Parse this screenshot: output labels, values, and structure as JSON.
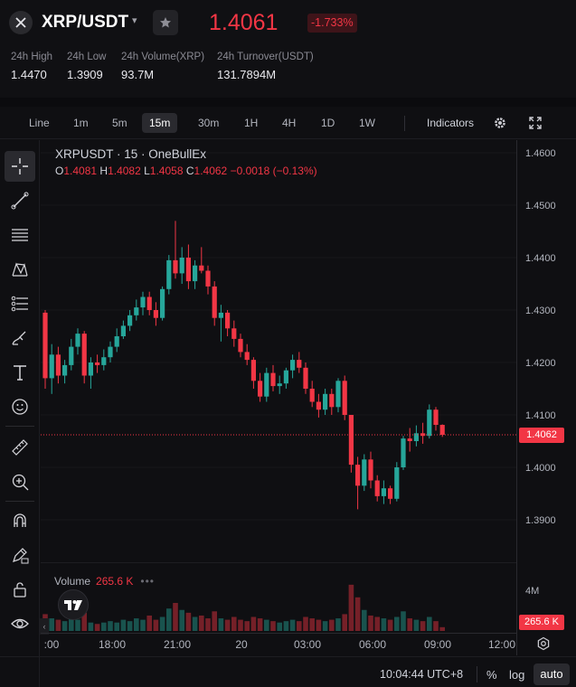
{
  "header": {
    "pair": "XRP/USDT",
    "caret": "▾",
    "last_price": "1.4061",
    "change_pct": "-1.733%",
    "stats": [
      {
        "label": "24h High",
        "value": "1.4470"
      },
      {
        "label": "24h Low",
        "value": "1.3909"
      },
      {
        "label": "24h Volume(XRP)",
        "value": "93.7M"
      },
      {
        "label": "24h Turnover(USDT)",
        "value": "131.7894M"
      }
    ]
  },
  "toolbar": {
    "timeframes": [
      "Line",
      "1m",
      "5m",
      "15m",
      "30m",
      "1H",
      "4H",
      "1D",
      "1W"
    ],
    "active_timeframe": "15m",
    "indicators_label": "Indicators"
  },
  "legend": {
    "title": "XRPUSDT · 15 · OneBullEx",
    "o_label": "O",
    "o": "1.4081",
    "h_label": "H",
    "h": "1.4082",
    "l_label": "L",
    "l": "1.4058",
    "c_label": "C",
    "c": "1.4062",
    "change": "−0.0018 (−0.13%)"
  },
  "price_axis": {
    "labels": [
      "1.4600",
      "1.4500",
      "1.4400",
      "1.4300",
      "1.4200",
      "1.4100",
      "1.4000",
      "1.3900"
    ],
    "current_tag": "1.4062",
    "volume_labels": [
      "4M"
    ],
    "volume_tag": "265.6 K"
  },
  "volume": {
    "label": "Volume",
    "value": "265.6 K",
    "dots": "•••"
  },
  "time_axis": {
    "labels": [
      ":00",
      "18:00",
      "21:00",
      "20",
      "03:00",
      "06:00",
      "09:00",
      "12:00"
    ]
  },
  "bottom_bar": {
    "clock": "10:04:44 UTC+8",
    "percent": "%",
    "log": "log",
    "auto": "auto"
  },
  "colors": {
    "up": "#26a69a",
    "down": "#f23645",
    "background": "#0f0f12",
    "accent_price": "#f23645"
  },
  "icons": {
    "pair": "close-x-icon",
    "favorite": "star-icon",
    "settings": "gear-icon",
    "fullscreen": "expand-icon",
    "tools": [
      "crosshair-icon",
      "trend-line-icon",
      "horizontal-lines-icon",
      "pattern-icon",
      "fib-icon",
      "brush-icon",
      "text-icon",
      "emoji-icon",
      "ruler-icon",
      "zoom-in-icon",
      "magnet-icon",
      "lock-pencil-icon",
      "lock-icon",
      "eye-icon"
    ]
  },
  "chart_data": {
    "type": "candlestick",
    "symbol": "XRPUSDT",
    "interval": "15",
    "ylim": [
      1.3855,
      1.462
    ],
    "price_ticks": [
      1.46,
      1.45,
      1.44,
      1.43,
      1.42,
      1.41,
      1.4,
      1.39
    ],
    "last_price": 1.4062,
    "candles": [
      [
        1.4295,
        1.43,
        1.415,
        1.417
      ],
      [
        1.417,
        1.4235,
        1.414,
        1.4215
      ],
      [
        1.4215,
        1.423,
        1.416,
        1.4175
      ],
      [
        1.4175,
        1.4205,
        1.416,
        1.4195
      ],
      [
        1.4195,
        1.4245,
        1.4185,
        1.423
      ],
      [
        1.423,
        1.4265,
        1.4215,
        1.4255
      ],
      [
        1.4255,
        1.426,
        1.416,
        1.4175
      ],
      [
        1.4175,
        1.421,
        1.415,
        1.42
      ],
      [
        1.42,
        1.4215,
        1.418,
        1.4195
      ],
      [
        1.4195,
        1.4225,
        1.4185,
        1.421
      ],
      [
        1.421,
        1.424,
        1.42,
        1.423
      ],
      [
        1.423,
        1.4265,
        1.422,
        1.425
      ],
      [
        1.425,
        1.428,
        1.4245,
        1.427
      ],
      [
        1.427,
        1.43,
        1.426,
        1.429
      ],
      [
        1.429,
        1.432,
        1.428,
        1.4305
      ],
      [
        1.4305,
        1.4335,
        1.429,
        1.4325
      ],
      [
        1.4325,
        1.4335,
        1.429,
        1.43
      ],
      [
        1.43,
        1.4315,
        1.427,
        1.4285
      ],
      [
        1.4285,
        1.4345,
        1.428,
        1.434
      ],
      [
        1.434,
        1.4405,
        1.433,
        1.4395
      ],
      [
        1.4395,
        1.447,
        1.436,
        1.437
      ],
      [
        1.437,
        1.442,
        1.435,
        1.44
      ],
      [
        1.44,
        1.4425,
        1.434,
        1.4355
      ],
      [
        1.4355,
        1.4395,
        1.434,
        1.4385
      ],
      [
        1.4385,
        1.442,
        1.437,
        1.4375
      ],
      [
        1.4375,
        1.4385,
        1.433,
        1.4345
      ],
      [
        1.4345,
        1.4355,
        1.427,
        1.4285
      ],
      [
        1.4285,
        1.431,
        1.424,
        1.4295
      ],
      [
        1.4295,
        1.43,
        1.425,
        1.4265
      ],
      [
        1.4265,
        1.428,
        1.423,
        1.4245
      ],
      [
        1.4245,
        1.4255,
        1.421,
        1.422
      ],
      [
        1.422,
        1.4235,
        1.4195,
        1.4205
      ],
      [
        1.4205,
        1.421,
        1.415,
        1.4165
      ],
      [
        1.4165,
        1.418,
        1.4125,
        1.4135
      ],
      [
        1.4135,
        1.419,
        1.4125,
        1.418
      ],
      [
        1.418,
        1.4195,
        1.4145,
        1.4155
      ],
      [
        1.4155,
        1.4175,
        1.414,
        1.416
      ],
      [
        1.416,
        1.419,
        1.415,
        1.4185
      ],
      [
        1.4185,
        1.4215,
        1.417,
        1.4205
      ],
      [
        1.4205,
        1.422,
        1.418,
        1.419
      ],
      [
        1.419,
        1.42,
        1.414,
        1.415
      ],
      [
        1.415,
        1.4165,
        1.4115,
        1.4125
      ],
      [
        1.4125,
        1.414,
        1.4095,
        1.411
      ],
      [
        1.411,
        1.415,
        1.41,
        1.414
      ],
      [
        1.414,
        1.415,
        1.41,
        1.4115
      ],
      [
        1.4115,
        1.417,
        1.4105,
        1.4165
      ],
      [
        1.4165,
        1.4175,
        1.409,
        1.41
      ],
      [
        1.41,
        1.41,
        1.399,
        1.4005
      ],
      [
        1.4005,
        1.402,
        1.392,
        1.3965
      ],
      [
        1.3965,
        1.4025,
        1.3955,
        1.4015
      ],
      [
        1.4015,
        1.403,
        1.396,
        1.3975
      ],
      [
        1.3975,
        1.3985,
        1.3935,
        1.3945
      ],
      [
        1.3945,
        1.3975,
        1.393,
        1.396
      ],
      [
        1.396,
        1.3965,
        1.393,
        1.394
      ],
      [
        1.394,
        1.401,
        1.3935,
        1.4
      ],
      [
        1.4,
        1.406,
        1.3995,
        1.4055
      ],
      [
        1.4055,
        1.4075,
        1.403,
        1.405
      ],
      [
        1.405,
        1.408,
        1.404,
        1.4065
      ],
      [
        1.4065,
        1.4085,
        1.4045,
        1.406
      ],
      [
        1.406,
        1.412,
        1.4055,
        1.411
      ],
      [
        1.411,
        1.4115,
        1.407,
        1.4081
      ],
      [
        1.4081,
        1.4082,
        1.4058,
        1.4062
      ]
    ],
    "volumes": [
      1.2,
      0.9,
      0.8,
      0.7,
      0.9,
      0.8,
      1.3,
      0.6,
      0.5,
      0.6,
      0.7,
      0.6,
      0.8,
      0.7,
      0.9,
      0.8,
      1.1,
      0.8,
      1.0,
      1.6,
      2.0,
      1.5,
      1.3,
      1.0,
      1.1,
      0.9,
      1.4,
      0.9,
      0.8,
      1.0,
      0.8,
      0.7,
      1.0,
      0.9,
      0.8,
      0.7,
      0.6,
      0.7,
      0.8,
      0.7,
      1.0,
      0.9,
      0.8,
      0.7,
      0.8,
      0.9,
      1.2,
      3.3,
      2.4,
      1.5,
      1.1,
      1.0,
      0.9,
      0.8,
      1.0,
      1.4,
      0.9,
      0.8,
      0.7,
      1.0,
      0.7,
      0.27
    ],
    "time_ticks": [
      ":00",
      "18:00",
      "21:00",
      "20",
      "03:00",
      "06:00",
      "09:00",
      "12:00"
    ]
  }
}
